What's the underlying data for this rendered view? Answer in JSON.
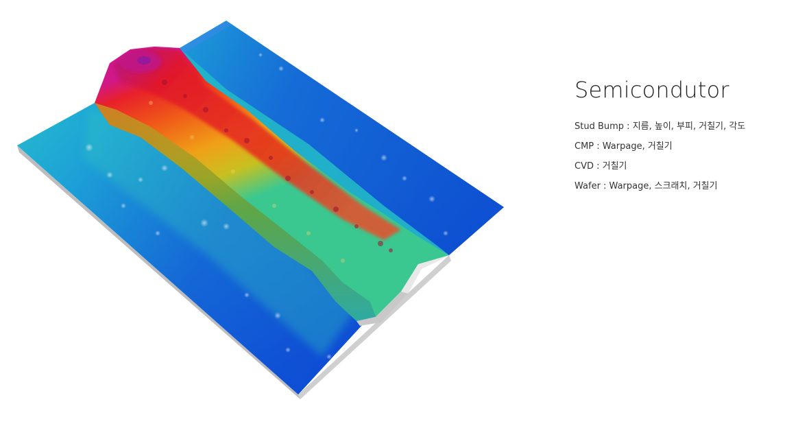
{
  "image": {
    "subject": "3D surface topography scan of a semiconductor surface",
    "colormap": [
      "#0a3fd6",
      "#1a7fe0",
      "#22c7d6",
      "#2ad0a0",
      "#e6d020",
      "#f08a10",
      "#e8202a",
      "#c0107a"
    ]
  },
  "panel": {
    "title": "Semicondutor",
    "items": [
      "Stud Bump : 지름, 높이, 부피, 거칠기, 각도",
      "CMP : Warpage, 거칠기",
      "CVD : 거칠기",
      "Wafer : Warpage, 스크래치, 거칠기"
    ]
  }
}
